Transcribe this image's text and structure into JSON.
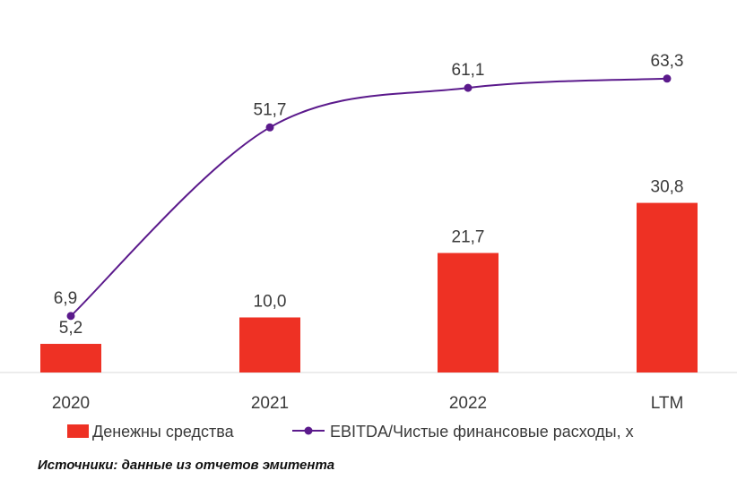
{
  "chart_data": {
    "type": "bar",
    "categories": [
      "2020",
      "2021",
      "2022",
      "LTM"
    ],
    "series": [
      {
        "name": "Денежны средства",
        "type": "bar",
        "values": [
          5.2,
          10.0,
          21.7,
          30.8
        ],
        "labels": [
          "5,2",
          "10,0",
          "21,7",
          "30,8"
        ],
        "color": "#ee3124"
      },
      {
        "name": "EBITDA/Чистые финансовые расходы, x",
        "type": "line",
        "values": [
          6.9,
          51.7,
          61.1,
          63.3
        ],
        "labels": [
          "6,9",
          "51,7",
          "61,1",
          "63,3"
        ],
        "color": "#5b1a8c"
      }
    ],
    "legend": "bottom",
    "grid": false
  },
  "source_note": "Источники: данные из отчетов эмитента"
}
